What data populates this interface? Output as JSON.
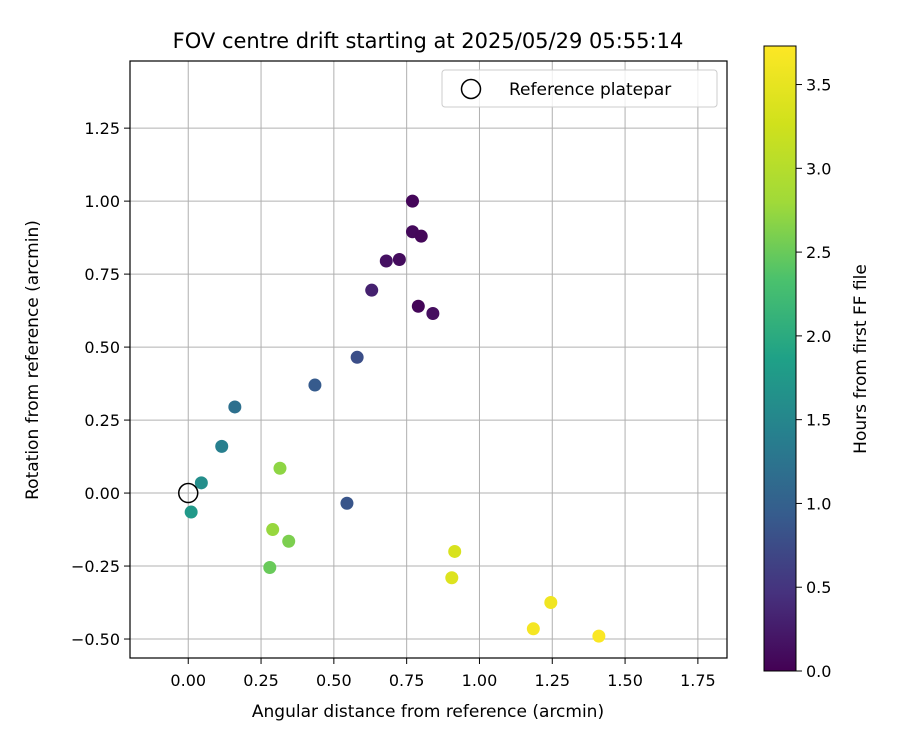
{
  "chart_data": {
    "type": "scatter",
    "title": "FOV centre drift starting at 2025/05/29 05:55:14",
    "xlabel": "Angular distance from reference (arcmin)",
    "ylabel": "Rotation from reference (arcmin)",
    "xlim": [
      -0.2,
      1.85
    ],
    "ylim": [
      -0.565,
      1.48
    ],
    "x_ticks": [
      0.0,
      0.25,
      0.5,
      0.75,
      1.0,
      1.25,
      1.5,
      1.75
    ],
    "x_tick_labels": [
      "0.00",
      "0.25",
      "0.50",
      "0.75",
      "1.00",
      "1.25",
      "1.50",
      "1.75"
    ],
    "y_ticks": [
      -0.5,
      -0.25,
      0.0,
      0.25,
      0.5,
      0.75,
      1.0,
      1.25
    ],
    "y_tick_labels": [
      "−0.50",
      "−0.25",
      "0.00",
      "0.25",
      "0.50",
      "0.75",
      "1.00",
      "1.25"
    ],
    "grid": true,
    "legend": {
      "position": "top-right",
      "label": "Reference platepar"
    },
    "reference_point": {
      "x": 0.0,
      "y": 0.0
    },
    "colorbar": {
      "label": "Hours from first FF file",
      "colormap": "viridis",
      "range": [
        0.0,
        3.73
      ],
      "ticks": [
        0.0,
        0.5,
        1.0,
        1.5,
        2.0,
        2.5,
        3.0,
        3.5
      ],
      "tick_labels": [
        "0.0",
        "0.5",
        "1.0",
        "1.5",
        "2.0",
        "2.5",
        "3.0",
        "3.5"
      ]
    },
    "points": [
      {
        "x": 0.77,
        "y": 1.0,
        "hours": 0.05
      },
      {
        "x": 0.77,
        "y": 0.895,
        "hours": 0.08
      },
      {
        "x": 0.8,
        "y": 0.88,
        "hours": 0.06
      },
      {
        "x": 0.68,
        "y": 0.795,
        "hours": 0.15
      },
      {
        "x": 0.725,
        "y": 0.8,
        "hours": 0.1
      },
      {
        "x": 0.79,
        "y": 0.64,
        "hours": 0.04
      },
      {
        "x": 0.84,
        "y": 0.615,
        "hours": 0.12
      },
      {
        "x": 0.63,
        "y": 0.695,
        "hours": 0.3
      },
      {
        "x": 0.58,
        "y": 0.465,
        "hours": 0.78
      },
      {
        "x": 0.435,
        "y": 0.37,
        "hours": 0.92
      },
      {
        "x": 0.545,
        "y": -0.035,
        "hours": 0.85
      },
      {
        "x": 0.16,
        "y": 0.295,
        "hours": 1.2
      },
      {
        "x": 0.115,
        "y": 0.16,
        "hours": 1.4
      },
      {
        "x": 0.045,
        "y": 0.035,
        "hours": 1.6
      },
      {
        "x": 0.01,
        "y": -0.065,
        "hours": 1.75
      },
      {
        "x": 0.315,
        "y": 0.085,
        "hours": 2.7
      },
      {
        "x": 0.29,
        "y": -0.125,
        "hours": 2.75
      },
      {
        "x": 0.345,
        "y": -0.165,
        "hours": 2.6
      },
      {
        "x": 0.28,
        "y": -0.255,
        "hours": 2.5
      },
      {
        "x": 0.915,
        "y": -0.2,
        "hours": 3.35
      },
      {
        "x": 0.905,
        "y": -0.29,
        "hours": 3.4
      },
      {
        "x": 1.245,
        "y": -0.375,
        "hours": 3.6
      },
      {
        "x": 1.185,
        "y": -0.465,
        "hours": 3.65
      },
      {
        "x": 1.41,
        "y": -0.49,
        "hours": 3.7
      }
    ]
  }
}
